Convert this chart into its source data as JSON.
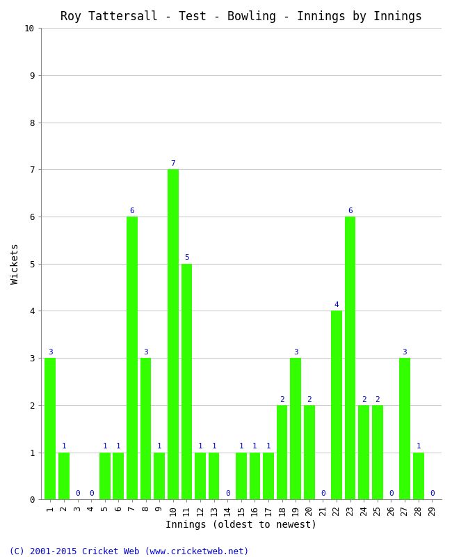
{
  "title": "Roy Tattersall - Test - Bowling - Innings by Innings",
  "xlabel": "Innings (oldest to newest)",
  "ylabel": "Wickets",
  "innings": [
    1,
    2,
    3,
    4,
    5,
    6,
    7,
    8,
    9,
    10,
    11,
    12,
    13,
    14,
    15,
    16,
    17,
    18,
    19,
    20,
    21,
    22,
    23,
    24,
    25,
    26,
    27,
    28,
    29
  ],
  "wickets": [
    3,
    1,
    0,
    0,
    1,
    1,
    6,
    3,
    1,
    7,
    5,
    1,
    1,
    0,
    1,
    1,
    1,
    2,
    3,
    2,
    0,
    4,
    6,
    2,
    2,
    0,
    3,
    1,
    0
  ],
  "bar_color": "#33ff00",
  "label_color": "#0000cc",
  "background_color": "#ffffff",
  "grid_color": "#cccccc",
  "ylim": [
    0,
    10
  ],
  "yticks": [
    0,
    1,
    2,
    3,
    4,
    5,
    6,
    7,
    8,
    9,
    10
  ],
  "title_fontsize": 12,
  "axis_label_fontsize": 10,
  "tick_fontsize": 9,
  "bar_label_fontsize": 8,
  "footer": "(C) 2001-2015 Cricket Web (www.cricketweb.net)",
  "footer_color": "#0000cc",
  "footer_fontsize": 9
}
